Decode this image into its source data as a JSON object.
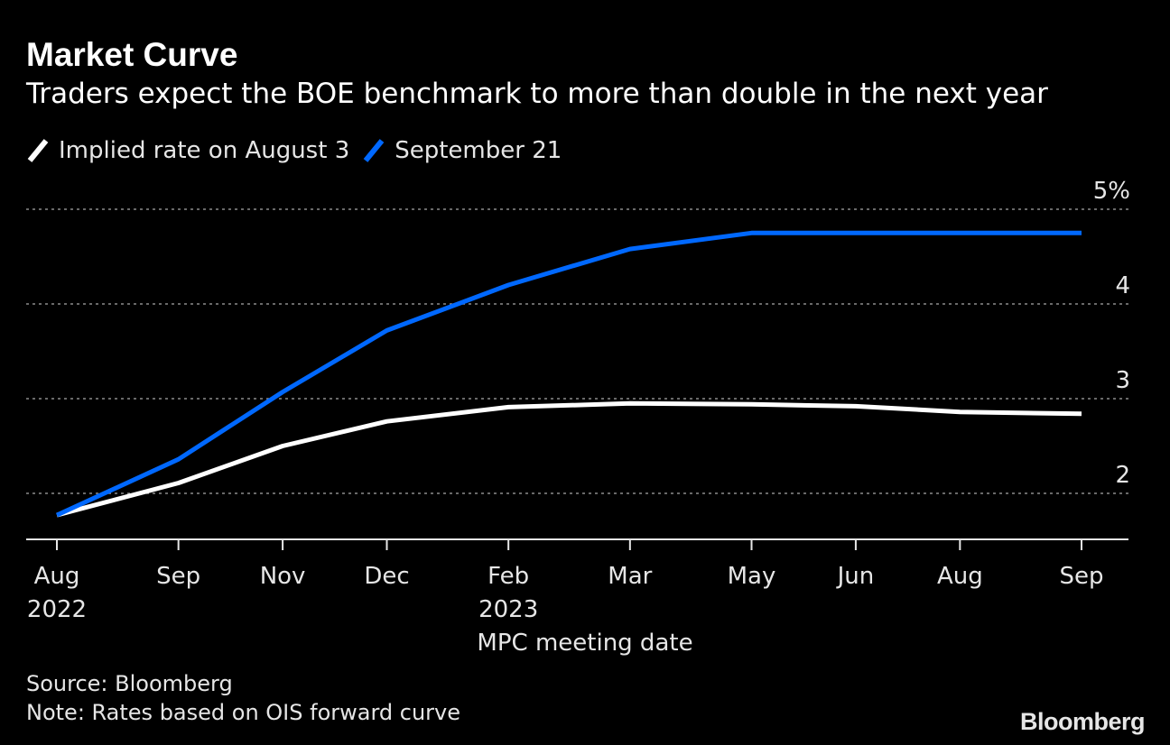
{
  "chart_data": {
    "type": "line",
    "title": "Market Curve",
    "subtitle": "Traders expect the BOE benchmark to more than double in the next year",
    "xlabel": "MPC meeting date",
    "ylabel": "",
    "ylim": [
      1.5,
      5
    ],
    "y_ticks": [
      {
        "value": 5,
        "label": "5%"
      },
      {
        "value": 4,
        "label": "4"
      },
      {
        "value": 3,
        "label": "3"
      },
      {
        "value": 2,
        "label": "2"
      }
    ],
    "grid": true,
    "legend_position": "top-left",
    "x": [
      "2022-08-04",
      "2022-09-22",
      "2022-11-03",
      "2022-12-15",
      "2023-02-02",
      "2023-03-23",
      "2023-05-11",
      "2023-06-22",
      "2023-08-03",
      "2023-09-21"
    ],
    "x_tick_labels": [
      {
        "month": "Aug",
        "year": "2022"
      },
      {
        "month": "Sep",
        "year": ""
      },
      {
        "month": "Nov",
        "year": ""
      },
      {
        "month": "Dec",
        "year": ""
      },
      {
        "month": "Feb",
        "year": "2023"
      },
      {
        "month": "Mar",
        "year": ""
      },
      {
        "month": "May",
        "year": ""
      },
      {
        "month": "Jun",
        "year": ""
      },
      {
        "month": "Aug",
        "year": ""
      },
      {
        "month": "Sep",
        "year": ""
      }
    ],
    "series": [
      {
        "name": "Implied rate on August 3",
        "color": "#ffffff",
        "points": [
          {
            "x": "2022-08-04",
            "y": 1.77
          },
          {
            "x": "2022-09-22",
            "y": 2.11
          },
          {
            "x": "2022-11-03",
            "y": 2.5
          },
          {
            "x": "2022-12-15",
            "y": 2.76
          },
          {
            "x": "2023-02-02",
            "y": 2.91
          },
          {
            "x": "2023-03-23",
            "y": 2.95
          },
          {
            "x": "2023-05-11",
            "y": 2.94
          },
          {
            "x": "2023-06-22",
            "y": 2.92
          },
          {
            "x": "2023-08-03",
            "y": 2.86
          },
          {
            "x": "2023-09-21",
            "y": 2.84
          }
        ]
      },
      {
        "name": "September 21",
        "color": "#0068ff",
        "points": [
          {
            "x": "2022-08-04",
            "y": 1.77
          },
          {
            "x": "2022-09-22",
            "y": 2.36
          },
          {
            "x": "2022-11-03",
            "y": 3.07
          },
          {
            "x": "2022-12-15",
            "y": 3.72
          },
          {
            "x": "2023-02-02",
            "y": 4.2
          },
          {
            "x": "2023-03-23",
            "y": 4.58
          },
          {
            "x": "2023-05-11",
            "y": 4.75
          },
          {
            "x": "2023-09-21",
            "y": 4.75
          }
        ]
      }
    ]
  },
  "footer": {
    "source": "Source: Bloomberg",
    "note": "Note: Rates based on OIS forward curve"
  },
  "brand": "Bloomberg",
  "colors": {
    "background": "#000000",
    "text": "#ffffff",
    "muted_text": "#e6e6e6",
    "gridline": "#8c8c8c"
  }
}
